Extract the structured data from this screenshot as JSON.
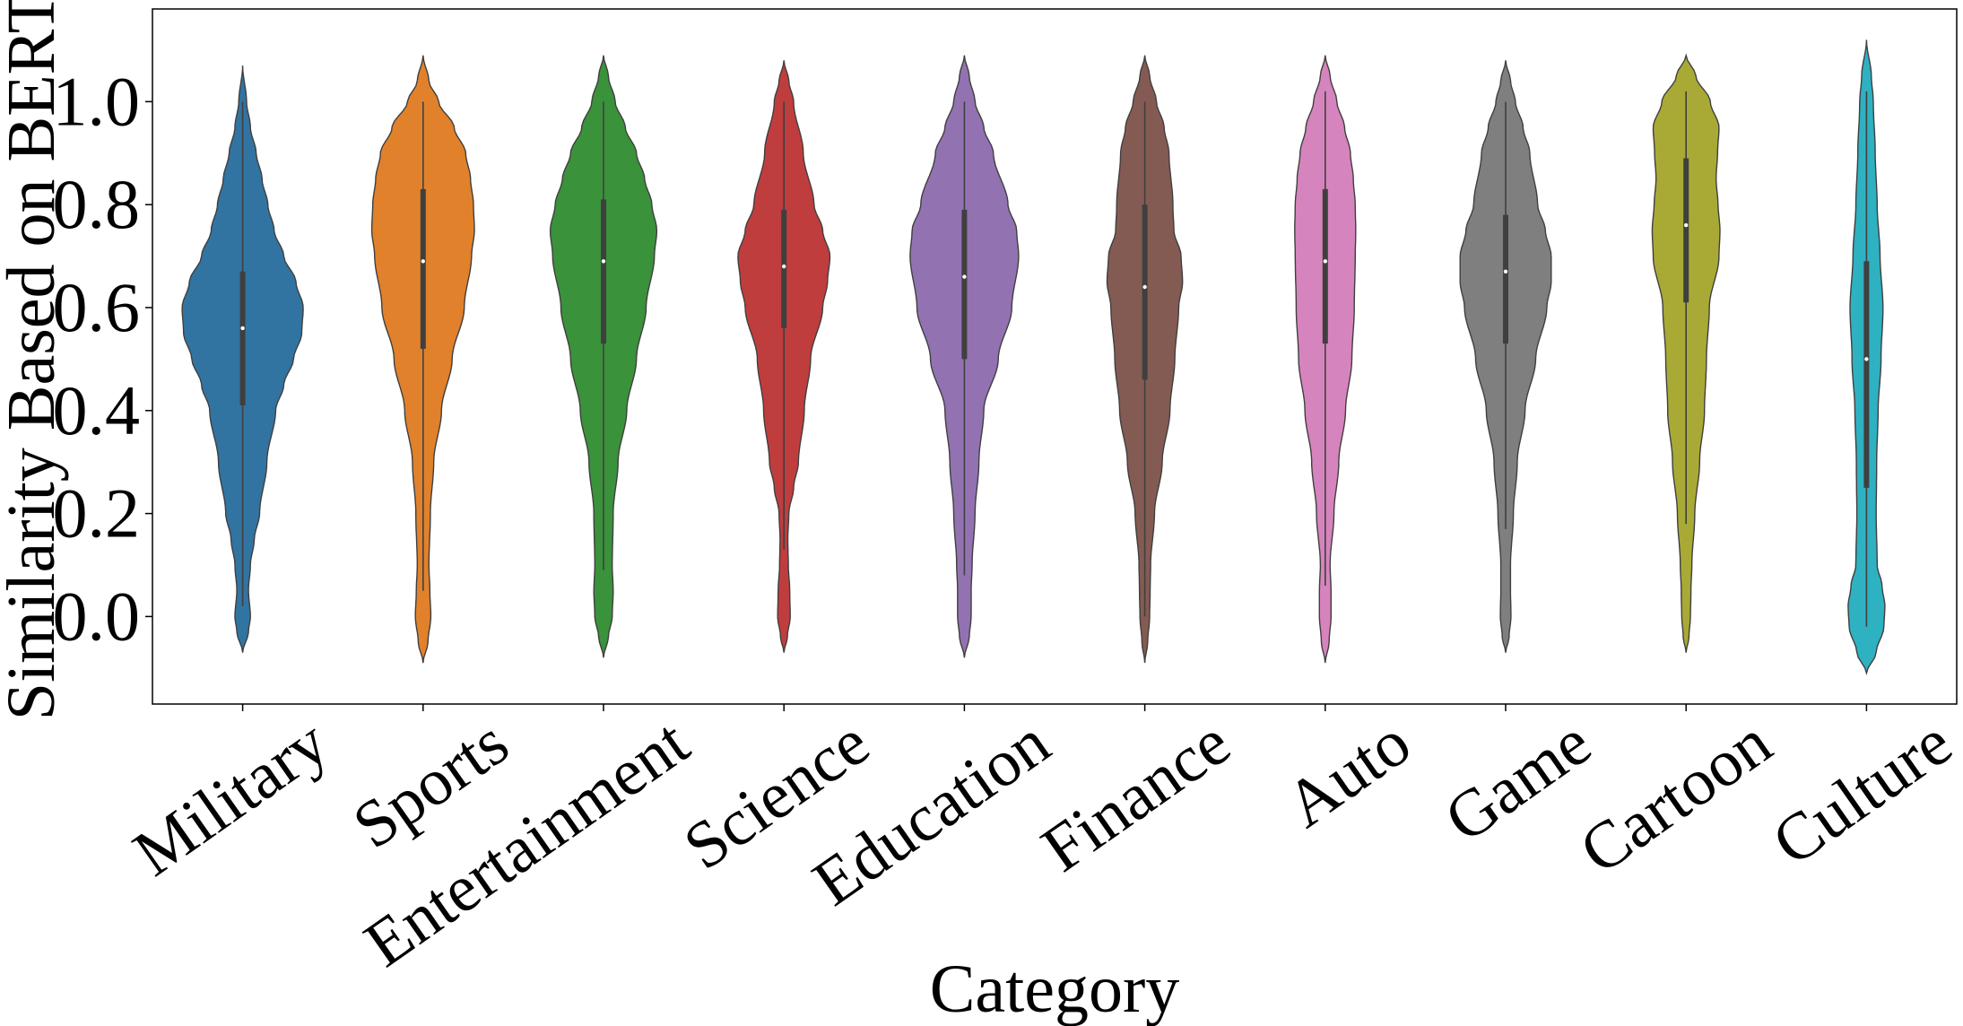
{
  "chart_data": {
    "type": "violin",
    "xlabel": "Category",
    "ylabel": "Similarity Based on BERT",
    "ylim": [
      -0.17,
      1.18
    ],
    "yticks": [
      0.0,
      0.2,
      0.4,
      0.6,
      0.8,
      1.0
    ],
    "ytick_labels": [
      "0.0",
      "0.2",
      "0.4",
      "0.6",
      "0.8",
      "1.0"
    ],
    "grid": false,
    "legend": "none",
    "categories": [
      {
        "name": "Military",
        "color": "#3274a1",
        "range": [
          -0.07,
          1.07
        ],
        "median": 0.56,
        "q1": 0.41,
        "q3": 0.67,
        "whisker": [
          0.02,
          1.0
        ],
        "profile": [
          [
            -0.07,
            0.0
          ],
          [
            -0.03,
            0.012
          ],
          [
            0.0,
            0.016
          ],
          [
            0.05,
            0.012
          ],
          [
            0.1,
            0.016
          ],
          [
            0.15,
            0.024
          ],
          [
            0.2,
            0.035
          ],
          [
            0.3,
            0.05
          ],
          [
            0.4,
            0.068
          ],
          [
            0.45,
            0.085
          ],
          [
            0.5,
            0.105
          ],
          [
            0.55,
            0.122
          ],
          [
            0.6,
            0.125
          ],
          [
            0.65,
            0.11
          ],
          [
            0.7,
            0.085
          ],
          [
            0.75,
            0.065
          ],
          [
            0.8,
            0.052
          ],
          [
            0.85,
            0.04
          ],
          [
            0.9,
            0.028
          ],
          [
            0.95,
            0.016
          ],
          [
            1.0,
            0.008
          ],
          [
            1.07,
            0.0
          ]
        ]
      },
      {
        "name": "Sports",
        "color": "#e1812c",
        "range": [
          -0.09,
          1.09
        ],
        "median": 0.69,
        "q1": 0.52,
        "q3": 0.83,
        "whisker": [
          0.05,
          1.0
        ],
        "profile": [
          [
            -0.09,
            0.0
          ],
          [
            -0.05,
            0.01
          ],
          [
            0.0,
            0.016
          ],
          [
            0.05,
            0.014
          ],
          [
            0.1,
            0.012
          ],
          [
            0.2,
            0.015
          ],
          [
            0.3,
            0.022
          ],
          [
            0.4,
            0.038
          ],
          [
            0.5,
            0.06
          ],
          [
            0.6,
            0.085
          ],
          [
            0.7,
            0.1
          ],
          [
            0.75,
            0.106
          ],
          [
            0.8,
            0.104
          ],
          [
            0.85,
            0.098
          ],
          [
            0.9,
            0.088
          ],
          [
            0.95,
            0.064
          ],
          [
            1.0,
            0.032
          ],
          [
            1.04,
            0.012
          ],
          [
            1.09,
            0.0
          ]
        ]
      },
      {
        "name": "Entertainment",
        "color": "#3a923a",
        "range": [
          -0.08,
          1.09
        ],
        "median": 0.69,
        "q1": 0.53,
        "q3": 0.81,
        "whisker": [
          0.09,
          1.0
        ],
        "profile": [
          [
            -0.08,
            0.0
          ],
          [
            -0.04,
            0.01
          ],
          [
            0.0,
            0.018
          ],
          [
            0.05,
            0.02
          ],
          [
            0.1,
            0.018
          ],
          [
            0.2,
            0.02
          ],
          [
            0.3,
            0.03
          ],
          [
            0.4,
            0.048
          ],
          [
            0.5,
            0.068
          ],
          [
            0.6,
            0.088
          ],
          [
            0.7,
            0.105
          ],
          [
            0.75,
            0.11
          ],
          [
            0.8,
            0.1
          ],
          [
            0.85,
            0.085
          ],
          [
            0.9,
            0.068
          ],
          [
            0.95,
            0.045
          ],
          [
            1.0,
            0.024
          ],
          [
            1.05,
            0.01
          ],
          [
            1.09,
            0.0
          ]
        ]
      },
      {
        "name": "Science",
        "color": "#c03d3e",
        "range": [
          -0.07,
          1.08
        ],
        "median": 0.68,
        "q1": 0.56,
        "q3": 0.79,
        "whisker": [
          0.13,
          1.0
        ],
        "profile": [
          [
            -0.07,
            0.0
          ],
          [
            -0.04,
            0.007
          ],
          [
            0.0,
            0.013
          ],
          [
            0.05,
            0.012
          ],
          [
            0.1,
            0.009
          ],
          [
            0.15,
            0.008
          ],
          [
            0.2,
            0.01
          ],
          [
            0.25,
            0.02
          ],
          [
            0.3,
            0.03
          ],
          [
            0.4,
            0.042
          ],
          [
            0.5,
            0.055
          ],
          [
            0.6,
            0.08
          ],
          [
            0.65,
            0.09
          ],
          [
            0.7,
            0.095
          ],
          [
            0.75,
            0.08
          ],
          [
            0.8,
            0.062
          ],
          [
            0.9,
            0.04
          ],
          [
            1.0,
            0.02
          ],
          [
            1.04,
            0.01
          ],
          [
            1.08,
            0.0
          ]
        ]
      },
      {
        "name": "Education",
        "color": "#9372b2",
        "range": [
          -0.08,
          1.09
        ],
        "median": 0.66,
        "q1": 0.5,
        "q3": 0.79,
        "whisker": [
          0.08,
          1.0
        ],
        "profile": [
          [
            -0.08,
            0.0
          ],
          [
            -0.04,
            0.01
          ],
          [
            0.0,
            0.014
          ],
          [
            0.05,
            0.014
          ],
          [
            0.1,
            0.016
          ],
          [
            0.2,
            0.022
          ],
          [
            0.3,
            0.03
          ],
          [
            0.4,
            0.04
          ],
          [
            0.5,
            0.07
          ],
          [
            0.6,
            0.098
          ],
          [
            0.7,
            0.112
          ],
          [
            0.75,
            0.108
          ],
          [
            0.8,
            0.09
          ],
          [
            0.9,
            0.06
          ],
          [
            0.95,
            0.04
          ],
          [
            1.0,
            0.022
          ],
          [
            1.05,
            0.01
          ],
          [
            1.09,
            0.0
          ]
        ]
      },
      {
        "name": "Finance",
        "color": "#845b53",
        "range": [
          -0.09,
          1.09
        ],
        "median": 0.64,
        "q1": 0.46,
        "q3": 0.8,
        "whisker": [
          0.0,
          1.0
        ],
        "profile": [
          [
            -0.09,
            0.0
          ],
          [
            -0.05,
            0.006
          ],
          [
            0.0,
            0.01
          ],
          [
            0.05,
            0.011
          ],
          [
            0.1,
            0.012
          ],
          [
            0.2,
            0.02
          ],
          [
            0.3,
            0.036
          ],
          [
            0.4,
            0.052
          ],
          [
            0.5,
            0.062
          ],
          [
            0.6,
            0.07
          ],
          [
            0.65,
            0.078
          ],
          [
            0.7,
            0.075
          ],
          [
            0.75,
            0.06
          ],
          [
            0.8,
            0.058
          ],
          [
            0.9,
            0.05
          ],
          [
            0.95,
            0.04
          ],
          [
            1.0,
            0.024
          ],
          [
            1.05,
            0.01
          ],
          [
            1.09,
            0.0
          ]
        ]
      },
      {
        "name": "Auto",
        "color": "#d684bd",
        "range": [
          -0.09,
          1.09
        ],
        "median": 0.69,
        "q1": 0.53,
        "q3": 0.83,
        "whisker": [
          0.06,
          1.02
        ],
        "profile": [
          [
            -0.09,
            0.0
          ],
          [
            -0.05,
            0.008
          ],
          [
            0.0,
            0.012
          ],
          [
            0.05,
            0.012
          ],
          [
            0.1,
            0.01
          ],
          [
            0.2,
            0.018
          ],
          [
            0.3,
            0.028
          ],
          [
            0.4,
            0.042
          ],
          [
            0.5,
            0.055
          ],
          [
            0.6,
            0.06
          ],
          [
            0.7,
            0.062
          ],
          [
            0.75,
            0.063
          ],
          [
            0.8,
            0.062
          ],
          [
            0.85,
            0.058
          ],
          [
            0.9,
            0.052
          ],
          [
            0.95,
            0.04
          ],
          [
            1.0,
            0.024
          ],
          [
            1.05,
            0.01
          ],
          [
            1.09,
            0.0
          ]
        ]
      },
      {
        "name": "Game",
        "color": "#7f7f7f",
        "range": [
          -0.07,
          1.08
        ],
        "median": 0.67,
        "q1": 0.53,
        "q3": 0.78,
        "whisker": [
          0.17,
          1.0
        ],
        "profile": [
          [
            -0.07,
            0.0
          ],
          [
            -0.04,
            0.007
          ],
          [
            0.0,
            0.011
          ],
          [
            0.05,
            0.01
          ],
          [
            0.1,
            0.01
          ],
          [
            0.2,
            0.016
          ],
          [
            0.3,
            0.024
          ],
          [
            0.4,
            0.04
          ],
          [
            0.5,
            0.062
          ],
          [
            0.6,
            0.085
          ],
          [
            0.65,
            0.094
          ],
          [
            0.7,
            0.094
          ],
          [
            0.75,
            0.082
          ],
          [
            0.8,
            0.066
          ],
          [
            0.9,
            0.05
          ],
          [
            0.95,
            0.036
          ],
          [
            1.0,
            0.02
          ],
          [
            1.04,
            0.01
          ],
          [
            1.08,
            0.0
          ]
        ]
      },
      {
        "name": "Cartoon",
        "color": "#a9aa35",
        "range": [
          -0.07,
          1.09
        ],
        "median": 0.76,
        "q1": 0.61,
        "q3": 0.89,
        "whisker": [
          0.18,
          1.02
        ],
        "profile": [
          [
            -0.07,
            0.0
          ],
          [
            -0.04,
            0.006
          ],
          [
            0.0,
            0.009
          ],
          [
            0.05,
            0.01
          ],
          [
            0.1,
            0.012
          ],
          [
            0.2,
            0.018
          ],
          [
            0.3,
            0.028
          ],
          [
            0.4,
            0.038
          ],
          [
            0.5,
            0.042
          ],
          [
            0.6,
            0.048
          ],
          [
            0.7,
            0.068
          ],
          [
            0.75,
            0.07
          ],
          [
            0.8,
            0.066
          ],
          [
            0.85,
            0.062
          ],
          [
            0.9,
            0.065
          ],
          [
            0.95,
            0.068
          ],
          [
            1.0,
            0.05
          ],
          [
            1.05,
            0.02
          ],
          [
            1.09,
            0.0
          ]
        ]
      },
      {
        "name": "Culture",
        "color": "#2eb1c1",
        "range": [
          -0.11,
          1.12
        ],
        "median": 0.5,
        "q1": 0.25,
        "q3": 0.69,
        "whisker": [
          -0.02,
          1.02
        ],
        "profile": [
          [
            -0.11,
            0.0
          ],
          [
            -0.07,
            0.02
          ],
          [
            -0.02,
            0.036
          ],
          [
            0.02,
            0.038
          ],
          [
            0.06,
            0.032
          ],
          [
            0.1,
            0.022
          ],
          [
            0.2,
            0.02
          ],
          [
            0.3,
            0.021
          ],
          [
            0.4,
            0.024
          ],
          [
            0.5,
            0.03
          ],
          [
            0.6,
            0.034
          ],
          [
            0.7,
            0.028
          ],
          [
            0.8,
            0.022
          ],
          [
            0.9,
            0.018
          ],
          [
            1.0,
            0.014
          ],
          [
            1.05,
            0.01
          ],
          [
            1.12,
            0.0
          ]
        ]
      }
    ]
  }
}
